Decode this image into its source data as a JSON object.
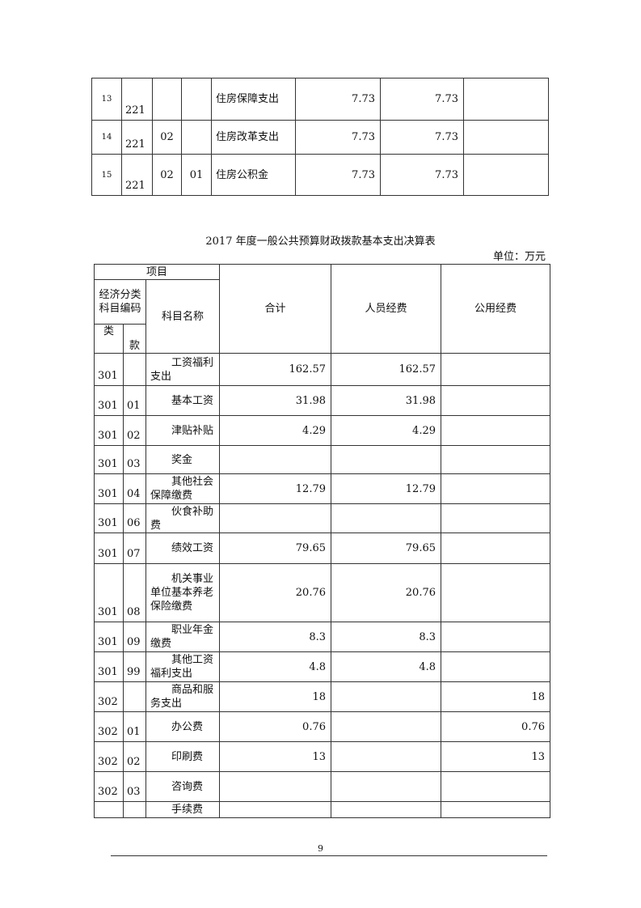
{
  "top_table": {
    "rows": [
      {
        "no": "13",
        "lei": "221",
        "kuan": "",
        "xiang": "",
        "name": "住房保障支出",
        "a": "7.73",
        "b": "7.73",
        "c": ""
      },
      {
        "no": "14",
        "lei": "221",
        "kuan": "02",
        "xiang": "",
        "name": "住房改革支出",
        "a": "7.73",
        "b": "7.73",
        "c": ""
      },
      {
        "no": "15",
        "lei": "221",
        "kuan": "02",
        "xiang": "01",
        "name": "住房公积金",
        "a": "7.73",
        "b": "7.73",
        "c": ""
      }
    ]
  },
  "title": "2017 年度一般公共预算财政拨款基本支出决算表",
  "unit": "单位：万元",
  "table": {
    "headers": {
      "item": "项目",
      "code": "经济分类科目编码",
      "name": "科目名称",
      "total": "合计",
      "personnel": "人员经费",
      "public": "公用经费",
      "lei": "类",
      "kuan": "款"
    },
    "rows": [
      {
        "lei": "301",
        "kuan": "",
        "name": "工资福利支出",
        "total": "162.57",
        "personnel": "162.57",
        "public": ""
      },
      {
        "lei": "301",
        "kuan": "01",
        "name": "基本工资",
        "total": "31.98",
        "personnel": "31.98",
        "public": ""
      },
      {
        "lei": "301",
        "kuan": "02",
        "name": "津贴补贴",
        "total": "4.29",
        "personnel": "4.29",
        "public": ""
      },
      {
        "lei": "301",
        "kuan": "03",
        "name": "奖金",
        "total": "",
        "personnel": "",
        "public": ""
      },
      {
        "lei": "301",
        "kuan": "04",
        "name": "其他社会保障缴费",
        "total": "12.79",
        "personnel": "12.79",
        "public": ""
      },
      {
        "lei": "301",
        "kuan": "06",
        "name": "伙食补助费",
        "total": "",
        "personnel": "",
        "public": ""
      },
      {
        "lei": "301",
        "kuan": "07",
        "name": "绩效工资",
        "total": "79.65",
        "personnel": "79.65",
        "public": ""
      },
      {
        "lei": "301",
        "kuan": "08",
        "name": "机关事业单位基本养老保险缴费",
        "total": "20.76",
        "personnel": "20.76",
        "public": ""
      },
      {
        "lei": "301",
        "kuan": "09",
        "name": "职业年金缴费",
        "total": "8.3",
        "personnel": "8.3",
        "public": ""
      },
      {
        "lei": "301",
        "kuan": "99",
        "name": "其他工资福利支出",
        "total": "4.8",
        "personnel": "4.8",
        "public": ""
      },
      {
        "lei": "302",
        "kuan": "",
        "name": "商品和服务支出",
        "total": "18",
        "personnel": "",
        "public": "18"
      },
      {
        "lei": "302",
        "kuan": "01",
        "name": "办公费",
        "total": "0.76",
        "personnel": "",
        "public": "0.76"
      },
      {
        "lei": "302",
        "kuan": "02",
        "name": "印刷费",
        "total": "13",
        "personnel": "",
        "public": "13"
      },
      {
        "lei": "302",
        "kuan": "03",
        "name": "咨询费",
        "total": "",
        "personnel": "",
        "public": ""
      },
      {
        "lei": "",
        "kuan": "",
        "name": "手续费",
        "total": "",
        "personnel": "",
        "public": ""
      }
    ]
  },
  "page_number": "9"
}
